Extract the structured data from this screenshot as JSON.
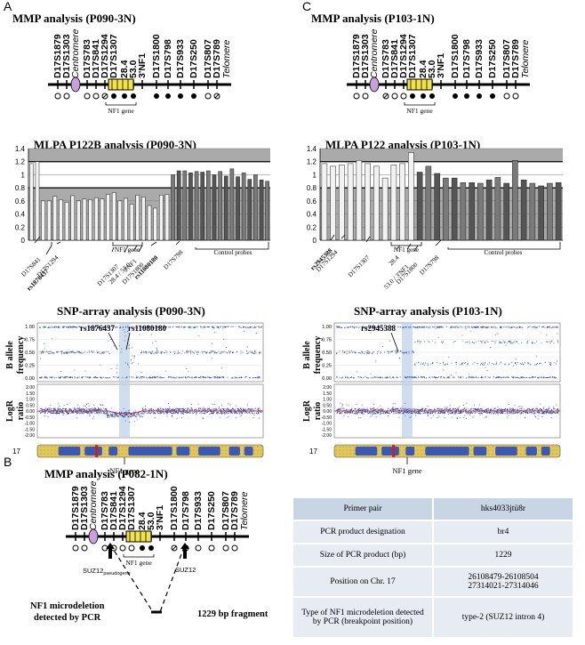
{
  "panels": {
    "A": "A",
    "B": "B",
    "C": "C"
  },
  "titles": {
    "mmpA": "MMP analysis (P090-3N)",
    "mmpC": "MMP analysis (P103-1N)",
    "mmpB": "MMP analysis (P082-1N)",
    "mlpaA": "MLPA P122B analysis (P090-3N)",
    "mlpaC": "MLPA P122 analysis (P103-1N)",
    "snpA": "SNP-array analysis (P090-3N)",
    "snpC": "SNP-array analysis (P103-1N)"
  },
  "markers": [
    "D17S1879",
    "D17S1303",
    "Centromere",
    "D17S783",
    "D17S841",
    "D17S1294",
    "D17S1307",
    "28.4",
    "53.0",
    "3'NF1",
    "D17S1800",
    "D17S798",
    "D17S933",
    "D17S250",
    "D17S807",
    "D17S789",
    "Telomere"
  ],
  "nf1_gene_label": "NF1 gene",
  "mlpa_axis": [
    "0",
    "0.2",
    "0.4",
    "0.6",
    "0.8",
    "1",
    "1.2",
    "1.4"
  ],
  "mlpaA_labels": {
    "d17s841": "D17S841",
    "rs1876437": "rs1876437",
    "d17s1294": "D17S1294",
    "nf1": "NF1 gene",
    "d17s1307": "D17S1307",
    "n284": "28.4 / 53.0",
    "nf13": "3'NF1",
    "d17s1800": "D17S1800",
    "rs11080180": "rs11080180",
    "d17s798": "D17S798",
    "control": "Control probes"
  },
  "mlpaC_labels": {
    "rs2945388": "rs2945388",
    "d17s1294": "D17S1294",
    "d17s1307": "D17S1307",
    "nf1": "NF1 gene",
    "n284": "28.4",
    "n530": "53.0 / 3'NF1",
    "d17s1800": "D17S1800",
    "d17s798": "D17S798",
    "control": "Control probes"
  },
  "snp": {
    "baf_label_1": "B allele",
    "baf_label_2": "frequency",
    "logr_label_1": "LogR",
    "logr_label_2": "ratio",
    "baf_ticks": [
      "1.00",
      "0.75",
      "0.50",
      "0.25",
      "0.00"
    ],
    "logr_ticks": [
      "2.00",
      "1.50",
      "1.00",
      "0.50",
      "0.00",
      "-0.50",
      "-1.00",
      "-1.50",
      "-2.00"
    ],
    "chr": "17",
    "markerA1": "rs1876437",
    "markerA2": "rs11080180",
    "markerC": "rs2945388",
    "gene": "NF1 gene"
  },
  "panelB": {
    "suz12p": "SUZ12",
    "suz12p_sub": "pseudogene",
    "suz12": "SUZ12",
    "deletion1": "NF1 microdeletion",
    "deletion2": "detected by PCR",
    "fragment": "1229 bp fragment"
  },
  "table": {
    "rows": [
      {
        "label": "Primer pair",
        "value": "hks4033jtü8r"
      },
      {
        "label": "PCR product designation",
        "value": "br4"
      },
      {
        "label": "Size of PCR product (bp)",
        "value": "1229"
      },
      {
        "label": "Position on Chr. 17",
        "value": "26108479-26108504",
        "value2": "27314021-27314046"
      },
      {
        "label": "Type of NF1 microdeletion detected by PCR (breakpoint position)",
        "value": "type-2 (SUZ12 intron 4)"
      }
    ]
  },
  "chart_data": [
    {
      "type": "bar",
      "title": "MLPA P122B analysis (P090-3N)",
      "ylim": [
        0,
        1.4
      ],
      "ylabel": "",
      "xlabel": "",
      "values": [
        1.17,
        1.2,
        0.6,
        0.6,
        0.67,
        0.62,
        0.58,
        0.68,
        0.6,
        0.63,
        0.62,
        0.65,
        0.63,
        0.7,
        0.73,
        0.6,
        0.64,
        0.55,
        0.69,
        0.66,
        0.53,
        0.49,
        0.69,
        0.7,
        1.0,
        1.06,
        1.06,
        1.03,
        1.05,
        1.04,
        1.06,
        1.0,
        1.05,
        0.98,
        1.09,
        0.97,
        1.03,
        0.93,
        1.0,
        0.92,
        0.9
      ],
      "reference_lines": [
        0.8,
        1.2
      ]
    },
    {
      "type": "bar",
      "title": "MLPA P122 analysis (P103-1N)",
      "ylim": [
        0,
        1.4
      ],
      "ylabel": "",
      "xlabel": "",
      "values": [
        1.17,
        1.13,
        1.15,
        1.17,
        1.22,
        1.17,
        1.13,
        0.95,
        1.15,
        1.17,
        1.34,
        1.04,
        1.13,
        1.02,
        0.95,
        0.95,
        0.88,
        0.88,
        0.87,
        0.92,
        0.96,
        0.87,
        1.22,
        0.92,
        0.87,
        0.83,
        0.87,
        0.88
      ],
      "reference_lines": [
        0.8,
        1.2
      ]
    }
  ]
}
